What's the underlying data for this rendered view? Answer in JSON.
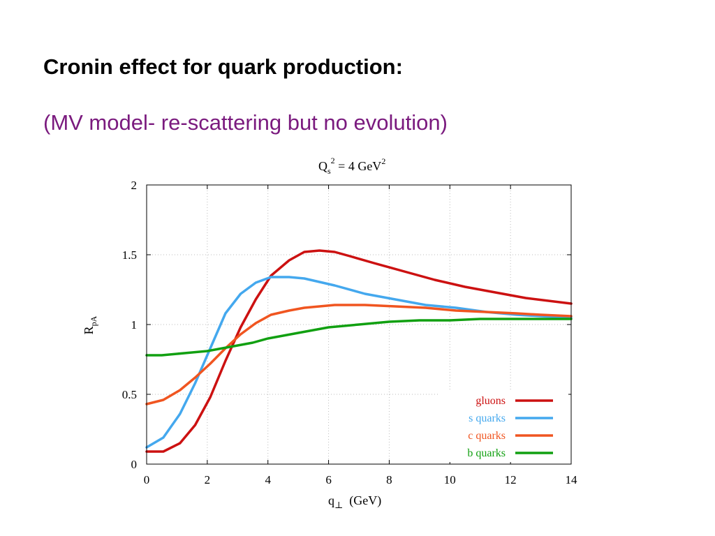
{
  "slide": {
    "title": "Cronin effect for quark production:",
    "subtitle": "(MV model- re-scattering but no evolution)"
  },
  "colors": {
    "subtitle": "#7a1a7e",
    "gluons": "#cc1111",
    "s_quarks": "#44a8ee",
    "c_quarks": "#f05520",
    "b_quarks": "#11a011"
  },
  "chart_data": {
    "type": "line",
    "title": {
      "main": "Q",
      "sub": "s",
      "sup": "2",
      "rest": " = 4 GeV",
      "unit_sup": "2"
    },
    "xlabel": {
      "main": "q",
      "sub": "⊥",
      "rest": "  (GeV)"
    },
    "ylabel": {
      "main": "R",
      "sub": "pA"
    },
    "xlim": [
      0,
      14
    ],
    "ylim": [
      0,
      2
    ],
    "xticks": [
      "0",
      "2",
      "4",
      "6",
      "8",
      "10",
      "12",
      "14"
    ],
    "yticks": [
      "0",
      "0.5",
      "1",
      "1.5",
      "2"
    ],
    "grid": true,
    "legend_position": "bottom-right",
    "series": [
      {
        "name": "gluons",
        "color": "#cc1111",
        "x": [
          0,
          0.55,
          1.1,
          1.6,
          2.1,
          2.6,
          3.1,
          3.6,
          4.1,
          4.7,
          5.2,
          5.7,
          6.2,
          6.7,
          7.5,
          8.5,
          9.5,
          10.5,
          11.5,
          12.5,
          14
        ],
        "y": [
          0.09,
          0.09,
          0.15,
          0.28,
          0.48,
          0.74,
          0.98,
          1.18,
          1.35,
          1.46,
          1.52,
          1.53,
          1.52,
          1.49,
          1.44,
          1.38,
          1.32,
          1.27,
          1.23,
          1.19,
          1.15
        ]
      },
      {
        "name": "s quarks",
        "color": "#44a8ee",
        "x": [
          0,
          0.55,
          1.1,
          1.6,
          2.1,
          2.6,
          3.1,
          3.6,
          4.1,
          4.7,
          5.2,
          6.2,
          7.2,
          8.2,
          9.2,
          10.2,
          11.2,
          12.2,
          13,
          14
        ],
        "y": [
          0.12,
          0.19,
          0.36,
          0.58,
          0.83,
          1.08,
          1.22,
          1.3,
          1.34,
          1.34,
          1.33,
          1.28,
          1.22,
          1.18,
          1.14,
          1.12,
          1.09,
          1.07,
          1.06,
          1.05
        ]
      },
      {
        "name": "c quarks",
        "color": "#f05520",
        "x": [
          0,
          0.55,
          1.1,
          1.6,
          2.1,
          2.6,
          3.1,
          3.6,
          4.1,
          4.7,
          5.2,
          6.2,
          7.2,
          8.2,
          9.2,
          10.2,
          11.2,
          12.2,
          13,
          14
        ],
        "y": [
          0.43,
          0.46,
          0.53,
          0.62,
          0.72,
          0.83,
          0.93,
          1.01,
          1.07,
          1.1,
          1.12,
          1.14,
          1.14,
          1.13,
          1.12,
          1.1,
          1.09,
          1.08,
          1.07,
          1.06
        ]
      },
      {
        "name": "b quarks",
        "color": "#11a011",
        "x": [
          0,
          0.5,
          1.0,
          1.5,
          2.0,
          2.5,
          3.0,
          3.5,
          4.0,
          5.0,
          6.0,
          7.0,
          8.0,
          9.0,
          10.0,
          11.0,
          12.0,
          13.0,
          14
        ],
        "y": [
          0.78,
          0.78,
          0.79,
          0.8,
          0.81,
          0.83,
          0.85,
          0.87,
          0.9,
          0.94,
          0.98,
          1.0,
          1.02,
          1.03,
          1.03,
          1.04,
          1.04,
          1.04,
          1.04
        ]
      }
    ]
  }
}
